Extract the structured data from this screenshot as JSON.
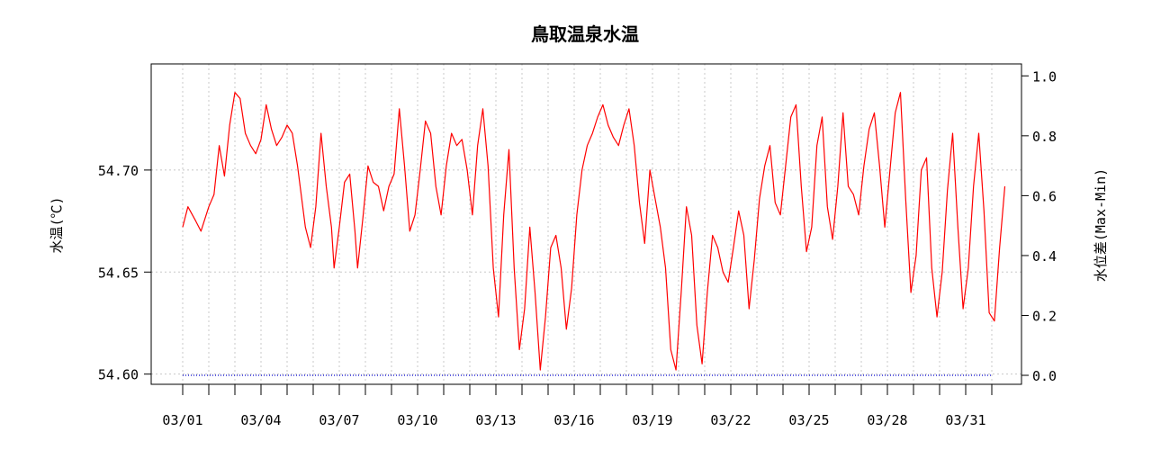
{
  "chart_data": {
    "type": "line",
    "title": "鳥取温泉水温",
    "ylabel_left": "水温(℃)",
    "ylabel_right": "水位差(Max-Min)",
    "x_tick_labels": [
      "03/01",
      "03/04",
      "03/07",
      "03/10",
      "03/13",
      "03/16",
      "03/19",
      "03/22",
      "03/25",
      "03/28",
      "03/31"
    ],
    "x_tick_days": [
      1,
      4,
      7,
      10,
      13,
      16,
      19,
      22,
      25,
      28,
      31
    ],
    "xlim_days": [
      1,
      32
    ],
    "ylim_left": [
      54.595,
      54.752
    ],
    "ylim_right": [
      -0.03,
      1.04
    ],
    "y_ticks_left": [
      "54.60",
      "54.65",
      "54.70"
    ],
    "y_ticks_right": [
      "0.0",
      "0.2",
      "0.4",
      "0.6",
      "0.8",
      "1.0"
    ],
    "grid": true,
    "series": [
      {
        "axis": "left",
        "color": "#ff0000",
        "style": "solid",
        "points": [
          [
            1.0,
            54.672
          ],
          [
            1.2,
            54.682
          ],
          [
            1.5,
            54.675
          ],
          [
            1.7,
            54.67
          ],
          [
            2.0,
            54.682
          ],
          [
            2.2,
            54.688
          ],
          [
            2.4,
            54.712
          ],
          [
            2.6,
            54.697
          ],
          [
            2.8,
            54.722
          ],
          [
            3.0,
            54.738
          ],
          [
            3.2,
            54.735
          ],
          [
            3.4,
            54.718
          ],
          [
            3.6,
            54.712
          ],
          [
            3.8,
            54.708
          ],
          [
            4.0,
            54.715
          ],
          [
            4.2,
            54.732
          ],
          [
            4.4,
            54.72
          ],
          [
            4.6,
            54.712
          ],
          [
            4.8,
            54.716
          ],
          [
            5.0,
            54.722
          ],
          [
            5.2,
            54.718
          ],
          [
            5.4,
            54.702
          ],
          [
            5.7,
            54.672
          ],
          [
            5.9,
            54.662
          ],
          [
            6.1,
            54.682
          ],
          [
            6.3,
            54.718
          ],
          [
            6.5,
            54.692
          ],
          [
            6.7,
            54.672
          ],
          [
            6.8,
            54.652
          ],
          [
            7.0,
            54.672
          ],
          [
            7.2,
            54.694
          ],
          [
            7.4,
            54.698
          ],
          [
            7.6,
            54.67
          ],
          [
            7.7,
            54.652
          ],
          [
            7.9,
            54.676
          ],
          [
            8.1,
            54.702
          ],
          [
            8.3,
            54.694
          ],
          [
            8.5,
            54.692
          ],
          [
            8.7,
            54.68
          ],
          [
            8.9,
            54.692
          ],
          [
            9.1,
            54.698
          ],
          [
            9.3,
            54.73
          ],
          [
            9.5,
            54.702
          ],
          [
            9.7,
            54.67
          ],
          [
            9.9,
            54.678
          ],
          [
            10.1,
            54.7
          ],
          [
            10.3,
            54.724
          ],
          [
            10.5,
            54.718
          ],
          [
            10.7,
            54.692
          ],
          [
            10.9,
            54.678
          ],
          [
            11.1,
            54.702
          ],
          [
            11.3,
            54.718
          ],
          [
            11.5,
            54.712
          ],
          [
            11.7,
            54.715
          ],
          [
            11.9,
            54.7
          ],
          [
            12.1,
            54.678
          ],
          [
            12.3,
            54.712
          ],
          [
            12.5,
            54.73
          ],
          [
            12.7,
            54.702
          ],
          [
            12.9,
            54.652
          ],
          [
            13.1,
            54.628
          ],
          [
            13.3,
            54.678
          ],
          [
            13.5,
            54.71
          ],
          [
            13.7,
            54.652
          ],
          [
            13.9,
            54.612
          ],
          [
            14.1,
            54.632
          ],
          [
            14.3,
            54.672
          ],
          [
            14.5,
            54.64
          ],
          [
            14.7,
            54.602
          ],
          [
            14.9,
            54.628
          ],
          [
            15.1,
            54.662
          ],
          [
            15.3,
            54.668
          ],
          [
            15.5,
            54.652
          ],
          [
            15.7,
            54.622
          ],
          [
            15.9,
            54.642
          ],
          [
            16.1,
            54.678
          ],
          [
            16.3,
            54.7
          ],
          [
            16.5,
            54.712
          ],
          [
            16.7,
            54.718
          ],
          [
            16.9,
            54.726
          ],
          [
            17.1,
            54.732
          ],
          [
            17.3,
            54.722
          ],
          [
            17.5,
            54.716
          ],
          [
            17.7,
            54.712
          ],
          [
            17.9,
            54.722
          ],
          [
            18.1,
            54.73
          ],
          [
            18.3,
            54.712
          ],
          [
            18.5,
            54.684
          ],
          [
            18.7,
            54.664
          ],
          [
            18.9,
            54.7
          ],
          [
            19.1,
            54.686
          ],
          [
            19.3,
            54.672
          ],
          [
            19.5,
            54.652
          ],
          [
            19.7,
            54.612
          ],
          [
            19.9,
            54.602
          ],
          [
            20.1,
            54.64
          ],
          [
            20.3,
            54.682
          ],
          [
            20.5,
            54.668
          ],
          [
            20.7,
            54.624
          ],
          [
            20.9,
            54.605
          ],
          [
            21.1,
            54.64
          ],
          [
            21.3,
            54.668
          ],
          [
            21.5,
            54.662
          ],
          [
            21.7,
            54.65
          ],
          [
            21.9,
            54.645
          ],
          [
            22.1,
            54.662
          ],
          [
            22.3,
            54.68
          ],
          [
            22.5,
            54.668
          ],
          [
            22.7,
            54.632
          ],
          [
            22.9,
            54.656
          ],
          [
            23.1,
            54.686
          ],
          [
            23.3,
            54.702
          ],
          [
            23.5,
            54.712
          ],
          [
            23.7,
            54.684
          ],
          [
            23.9,
            54.678
          ],
          [
            24.1,
            54.702
          ],
          [
            24.3,
            54.726
          ],
          [
            24.5,
            54.732
          ],
          [
            24.7,
            54.692
          ],
          [
            24.9,
            54.66
          ],
          [
            25.1,
            54.672
          ],
          [
            25.3,
            54.712
          ],
          [
            25.5,
            54.726
          ],
          [
            25.7,
            54.682
          ],
          [
            25.9,
            54.666
          ],
          [
            26.1,
            54.692
          ],
          [
            26.3,
            54.728
          ],
          [
            26.5,
            54.692
          ],
          [
            26.7,
            54.688
          ],
          [
            26.9,
            54.678
          ],
          [
            27.1,
            54.702
          ],
          [
            27.3,
            54.72
          ],
          [
            27.5,
            54.728
          ],
          [
            27.7,
            54.702
          ],
          [
            27.9,
            54.672
          ],
          [
            28.1,
            54.7
          ],
          [
            28.3,
            54.728
          ],
          [
            28.5,
            54.738
          ],
          [
            28.7,
            54.686
          ],
          [
            28.9,
            54.64
          ],
          [
            29.1,
            54.658
          ],
          [
            29.3,
            54.7
          ],
          [
            29.5,
            54.706
          ],
          [
            29.7,
            54.652
          ],
          [
            29.9,
            54.628
          ],
          [
            30.1,
            54.65
          ],
          [
            30.3,
            54.69
          ],
          [
            30.5,
            54.718
          ],
          [
            30.7,
            54.672
          ],
          [
            30.9,
            54.632
          ],
          [
            31.1,
            54.652
          ],
          [
            31.3,
            54.692
          ],
          [
            31.5,
            54.718
          ],
          [
            31.7,
            54.68
          ],
          [
            31.9,
            54.63
          ],
          [
            32.1,
            54.626
          ],
          [
            32.3,
            54.662
          ],
          [
            32.5,
            54.692
          ]
        ]
      },
      {
        "axis": "right",
        "color": "#0000cc",
        "style": "dotted",
        "points": [
          [
            1.0,
            0.0
          ],
          [
            32.0,
            0.0
          ]
        ]
      }
    ]
  }
}
